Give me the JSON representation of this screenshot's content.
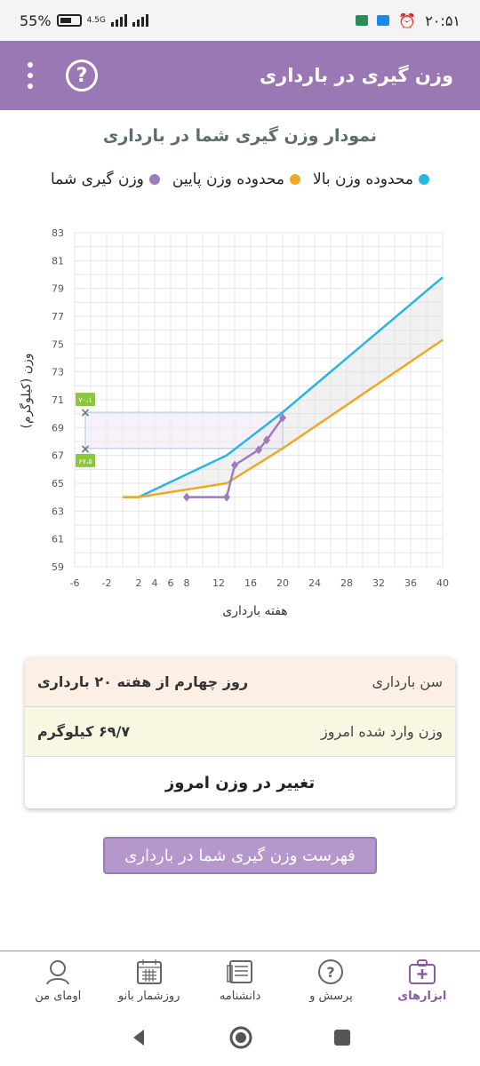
{
  "status_bar": {
    "battery": "55%",
    "net_speed": "4.5G",
    "time": "۲۰:۵۱"
  },
  "toolbar": {
    "title": "وزن گیری در بارداری",
    "help_label": "?"
  },
  "chart_section": {
    "title": "نمودار وزن گیری شما در بارداری",
    "legend": [
      {
        "label": "محدوده وزن بالا",
        "color": "#29b6e0"
      },
      {
        "label": "محدوده وزن پایین",
        "color": "#f0a824"
      },
      {
        "label": "وزن گیری شما",
        "color": "#9c7cbb"
      }
    ]
  },
  "chart_data": {
    "type": "line",
    "xlabel": "هفته بارداری",
    "ylabel": "وزن (کیلوگرم)",
    "xlim": [
      -6,
      40
    ],
    "ylim": [
      59,
      83
    ],
    "x_ticks": [
      -6,
      -2,
      2,
      4,
      6,
      8,
      12,
      16,
      20,
      24,
      28,
      32,
      36,
      40
    ],
    "y_ticks": [
      59,
      61,
      63,
      65,
      67,
      69,
      71,
      73,
      75,
      77,
      79,
      81,
      83
    ],
    "series": [
      {
        "name": "محدوده وزن بالا",
        "color": "#29b6e0",
        "x": [
          0,
          2,
          13,
          20,
          40
        ],
        "y": [
          64,
          64,
          67,
          70.1,
          79.8
        ]
      },
      {
        "name": "محدوده وزن پایین",
        "color": "#f0a824",
        "x": [
          0,
          2,
          13,
          20,
          40
        ],
        "y": [
          64,
          64,
          65,
          67.5,
          75.3
        ]
      },
      {
        "name": "وزن گیری شما",
        "color": "#9c7cbb",
        "x": [
          8,
          13,
          14,
          17,
          18,
          20
        ],
        "y": [
          64,
          64,
          66.3,
          67.4,
          68.1,
          69.7
        ]
      }
    ],
    "markers": [
      {
        "label": "۷۰،۱",
        "y": 70.1
      },
      {
        "label": "۶۷،۵",
        "y": 67.5
      }
    ]
  },
  "info_card": {
    "age_label": "سن بارداری",
    "age_value": "روز چهارم از هفته ۲۰ بارداری",
    "weight_label": "وزن وارد شده امروز",
    "weight_value": "۶۹/۷ کیلوگرم",
    "change_label": "تغییر در وزن امروز"
  },
  "list_button": "فهرست وزن گیری شما در بارداری",
  "bottom_nav": [
    {
      "label": "ابزارهای",
      "icon": "toolkit-icon",
      "active": true
    },
    {
      "label": "پرسش و",
      "icon": "question-icon",
      "active": false
    },
    {
      "label": "دانشنامه",
      "icon": "encyclopedia-icon",
      "active": false
    },
    {
      "label": "روزشمار بانو",
      "icon": "calendar-icon",
      "active": false
    },
    {
      "label": "اومای من",
      "icon": "profile-icon",
      "active": false
    }
  ]
}
